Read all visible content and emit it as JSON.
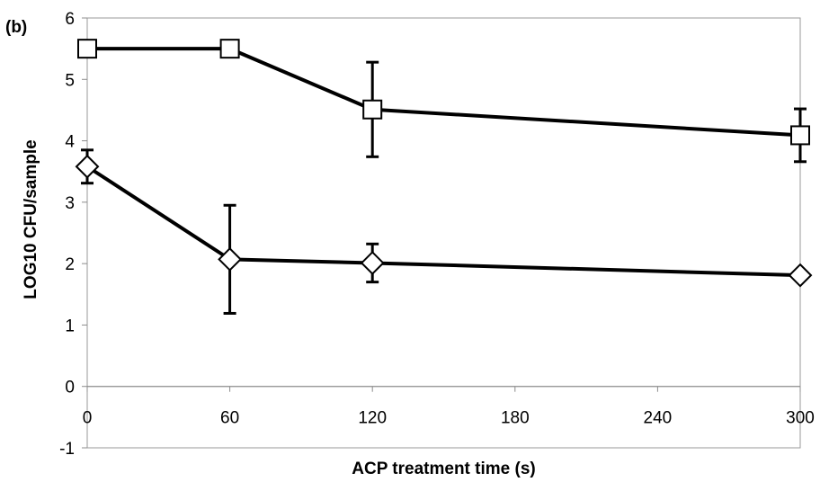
{
  "panel_label": "(b)",
  "chart_data": {
    "type": "line",
    "title": "",
    "xlabel": "ACP treatment time (s)",
    "ylabel": "LOG10 CFU/sample",
    "xlim": [
      0,
      300
    ],
    "ylim": [
      -1,
      6
    ],
    "xticks": [
      0,
      60,
      120,
      180,
      240,
      300
    ],
    "yticks": [
      -1,
      0,
      1,
      2,
      3,
      4,
      5,
      6
    ],
    "grid": "horizontal-x-axis-only",
    "legend": "none",
    "series": [
      {
        "marker": "square",
        "x": [
          0,
          60,
          120,
          300
        ],
        "y": [
          5.5,
          5.5,
          4.51,
          4.09
        ],
        "error": [
          0.08,
          0.04,
          0.77,
          0.43
        ]
      },
      {
        "marker": "diamond",
        "x": [
          0,
          60,
          120,
          300
        ],
        "y": [
          3.58,
          2.07,
          2.01,
          1.81
        ],
        "error": [
          0.27,
          0.88,
          0.31,
          0.06
        ]
      }
    ]
  }
}
